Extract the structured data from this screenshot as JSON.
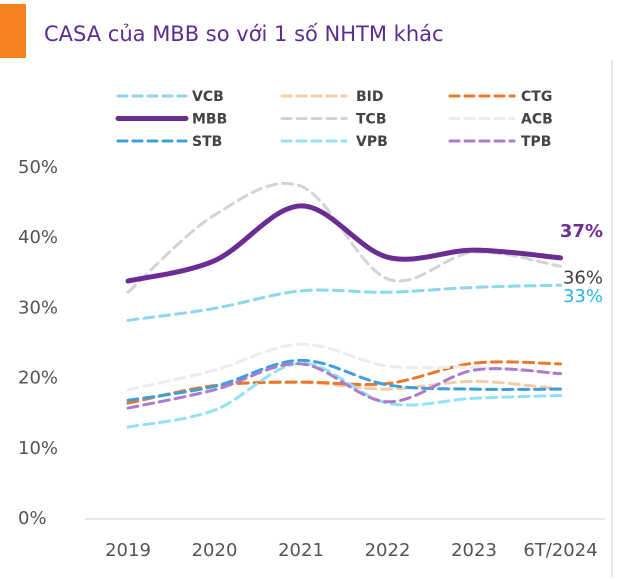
{
  "chart_data": {
    "type": "line",
    "title": "CASA của MBB so với 1 số NHTM khác",
    "categories": [
      "2019",
      "2020",
      "2021",
      "2022",
      "2023",
      "6T/2024"
    ],
    "ylim": [
      0,
      50
    ],
    "yticks": [
      {
        "value": 0,
        "label": "0%"
      },
      {
        "value": 10,
        "label": "10%"
      },
      {
        "value": 20,
        "label": "20%"
      },
      {
        "value": 30,
        "label": "30%"
      },
      {
        "value": 40,
        "label": "40%"
      },
      {
        "value": 50,
        "label": "50%"
      }
    ],
    "legend": "top",
    "series": [
      {
        "name": "VCB",
        "color": "#8fd6ef",
        "dashed": true,
        "values": [
          28.3,
          30,
          32.5,
          32.3,
          33,
          33.3
        ],
        "end_label": "33%",
        "end_label_color": "#29b6e6"
      },
      {
        "name": "BID",
        "color": "#f7cba7",
        "dashed": true,
        "values": [
          16.5,
          19,
          19.5,
          18.5,
          19.6,
          18.5
        ]
      },
      {
        "name": "CTG",
        "color": "#e8792a",
        "dashed": true,
        "values": [
          16.5,
          19,
          19.5,
          19.3,
          22.2,
          22.1
        ]
      },
      {
        "name": "MBB",
        "color": "#6b2d92",
        "dashed": false,
        "values": [
          33.9,
          36.8,
          44.6,
          37.3,
          38.3,
          37.2
        ],
        "end_label": "37%",
        "end_label_color": "#6b2d92"
      },
      {
        "name": "TCB",
        "color": "#d4d4d4",
        "dashed": true,
        "values": [
          32.3,
          43.3,
          47.4,
          34.2,
          38,
          36
        ],
        "end_label": "36%",
        "end_label_color": "#404040"
      },
      {
        "name": "ACB",
        "color": "#ececec",
        "dashed": true,
        "values": [
          18.4,
          21.2,
          24.9,
          21.8,
          21.6,
          20.8
        ]
      },
      {
        "name": "STB",
        "color": "#3d9fdc",
        "dashed": true,
        "values": [
          16.9,
          18.9,
          22.6,
          19.1,
          18.5,
          18.5
        ]
      },
      {
        "name": "VPB",
        "color": "#94e0f4",
        "dashed": true,
        "values": [
          13.1,
          15.5,
          22.2,
          16.5,
          17.2,
          17.6
        ]
      },
      {
        "name": "TPB",
        "color": "#a97ccc",
        "dashed": true,
        "values": [
          15.8,
          18.4,
          22.1,
          16.7,
          21.2,
          20.7
        ]
      }
    ]
  }
}
